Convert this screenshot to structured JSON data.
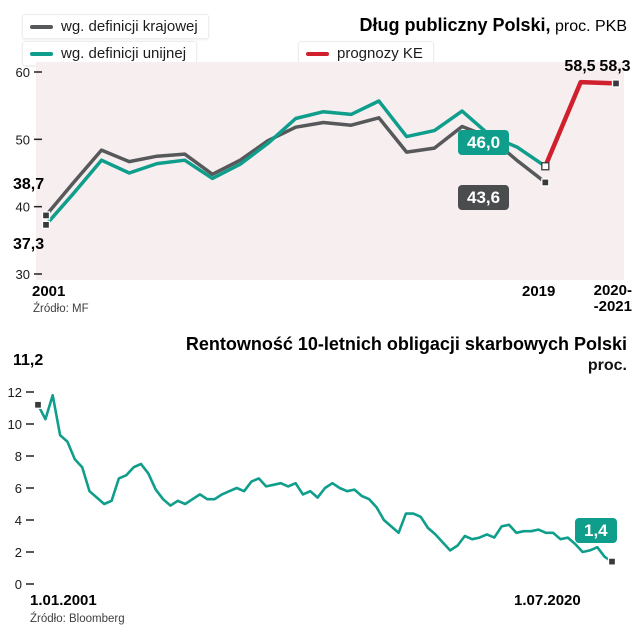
{
  "accent_colors": {
    "teal": "#0f9e8c",
    "gray": "#57585a",
    "red": "#d0202e",
    "panel_pink": "#f7eef0",
    "badge_dark": "#4b4c4e"
  },
  "top_chart": {
    "title_bold": "Dług publiczny Polski,",
    "title_normal": " proc. PKB",
    "legend": [
      {
        "label": "wg. definicji krajowej",
        "color": "#57585a"
      },
      {
        "label": "wg. definicji unijnej",
        "color": "#0f9e8c"
      },
      {
        "label": "prognozy KE",
        "color": "#d0202e"
      }
    ],
    "annotations": {
      "start_national": "38,7",
      "start_eu": "37,3",
      "eu_2019": "46,0",
      "national_2019": "43,6",
      "forecast_2020": "58,5",
      "forecast_2021": "58,3"
    },
    "x_axis": {
      "start": "2001",
      "end": "2019",
      "forecast_line1": "2020-",
      "forecast_line2": "-2021"
    },
    "source": "Źródło: MF"
  },
  "bottom_chart": {
    "title_bold": "Rentowność 10-letnich obligacji skarbowych Polski",
    "title_unit": "proc.",
    "annotations": {
      "start": "11,2",
      "end": "1,4"
    },
    "x_axis": {
      "start": "1.01.2001",
      "end": "1.07.2020"
    },
    "source": "Źródło: Bloomberg"
  },
  "chart_data": [
    {
      "type": "line",
      "title": "Dług publiczny Polski, proc. PKB",
      "plot_bg": "#f7eef0",
      "ylim": [
        30,
        60
      ],
      "yticks": [
        60,
        50,
        40,
        30
      ],
      "x": [
        2001,
        2002,
        2003,
        2004,
        2005,
        2006,
        2007,
        2008,
        2009,
        2010,
        2011,
        2012,
        2013,
        2014,
        2015,
        2016,
        2017,
        2018,
        2019
      ],
      "series": [
        {
          "name": "wg. definicji krajowej",
          "color": "#57585a",
          "xspan": [
            0,
            0.876
          ],
          "values": [
            38.7,
            43.6,
            48.4,
            46.7,
            47.5,
            47.8,
            44.8,
            46.9,
            49.8,
            51.8,
            52.5,
            52.1,
            53.2,
            48.1,
            48.7,
            51.9,
            50.3,
            46.8,
            43.6
          ]
        },
        {
          "name": "wg. definicji unijnej",
          "color": "#0f9e8c",
          "xspan": [
            0,
            0.876
          ],
          "values": [
            37.3,
            42.0,
            46.9,
            45.0,
            46.4,
            46.9,
            44.2,
            46.3,
            49.4,
            53.1,
            54.1,
            53.7,
            55.7,
            50.4,
            51.3,
            54.2,
            50.6,
            48.8,
            46.0
          ]
        },
        {
          "name": "prognozy KE",
          "color": "#d0202e",
          "xspan": [
            0.876,
            1.0
          ],
          "x": [
            2019,
            2020,
            2021
          ],
          "values": [
            46.0,
            58.5,
            58.3
          ]
        }
      ],
      "xtick_labels": [
        "2001",
        "2019",
        "2020--2021"
      ],
      "legend_position": "top-left",
      "grid": false
    },
    {
      "type": "line",
      "title": "Rentowność 10-letnich obligacji skarbowych Polski, proc.",
      "ylim": [
        0,
        12
      ],
      "yticks": [
        12,
        10,
        8,
        6,
        4,
        2,
        0
      ],
      "xtick_labels": [
        "1.01.2001",
        "1.07.2020"
      ],
      "series": [
        {
          "name": "rentowność 10-letnich obligacji",
          "color": "#0f9e8c",
          "values": [
            11.2,
            10.3,
            11.8,
            9.3,
            8.9,
            7.8,
            7.3,
            5.8,
            5.4,
            5.0,
            5.2,
            6.6,
            6.8,
            7.3,
            7.5,
            6.9,
            5.9,
            5.3,
            4.9,
            5.2,
            5.0,
            5.3,
            5.6,
            5.3,
            5.3,
            5.6,
            5.8,
            6.0,
            5.8,
            6.4,
            6.6,
            6.1,
            6.2,
            6.3,
            6.1,
            6.3,
            5.6,
            5.8,
            5.4,
            6.0,
            6.3,
            6.0,
            5.8,
            5.9,
            5.5,
            5.3,
            4.8,
            4.0,
            3.6,
            3.2,
            4.4,
            4.4,
            4.2,
            3.5,
            3.1,
            2.6,
            2.1,
            2.4,
            3.0,
            2.8,
            2.9,
            3.1,
            2.9,
            3.6,
            3.7,
            3.2,
            3.3,
            3.3,
            3.4,
            3.2,
            3.2,
            2.8,
            2.9,
            2.5,
            2.0,
            2.1,
            2.3,
            1.7,
            1.4
          ]
        }
      ],
      "grid": false,
      "legend_position": "none"
    }
  ]
}
